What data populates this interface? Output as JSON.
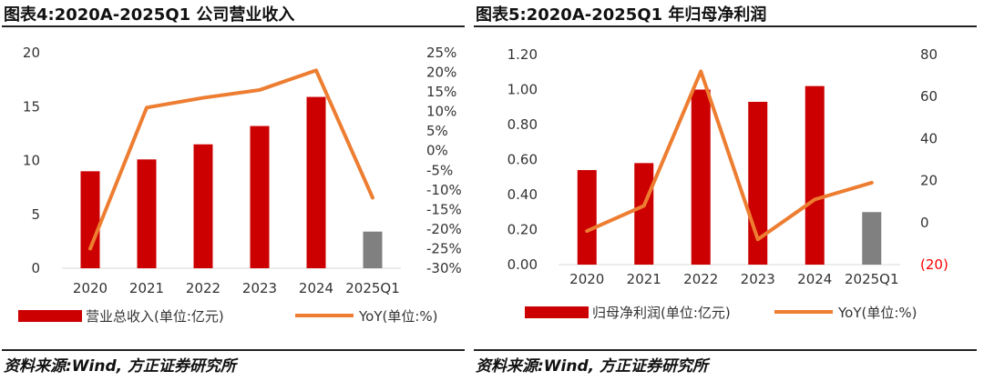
{
  "charts": [
    {
      "id": "left",
      "title": "图表4:2020A-2025Q1 公司营业收入",
      "source": "资料来源:Wind, 方正证券研究所",
      "chart_data": {
        "type": "bar",
        "categories": [
          "2020",
          "2021",
          "2022",
          "2023",
          "2024",
          "2025Q1"
        ],
        "series": [
          {
            "name": "营业总收入(单位:亿元)",
            "type": "bar",
            "axis": "left",
            "values": [
              9.0,
              10.1,
              11.5,
              13.2,
              15.9,
              3.4
            ],
            "colors": [
              "#cc0000",
              "#cc0000",
              "#cc0000",
              "#cc0000",
              "#cc0000",
              "#808080"
            ]
          },
          {
            "name": "YoY(单位:%)",
            "type": "line",
            "axis": "right",
            "color": "#ed7d31",
            "values": [
              -25,
              11,
              13.5,
              15.5,
              20.5,
              -12
            ]
          }
        ],
        "ylim_left": [
          0,
          20
        ],
        "yticks_left": [
          "0",
          "5",
          "10",
          "15",
          "20"
        ],
        "ylim_right": [
          -30,
          25
        ],
        "yticks_right": [
          "-30%",
          "-25%",
          "-20%",
          "-15%",
          "-10%",
          "-5%",
          "0%",
          "5%",
          "10%",
          "15%",
          "20%",
          "25%"
        ],
        "legend_position": "bottom",
        "grid": false
      }
    },
    {
      "id": "right",
      "title": "图表5:2020A-2025Q1 年归母净利润",
      "source": "资料来源:Wind, 方正证券研究所",
      "chart_data": {
        "type": "bar",
        "categories": [
          "2020",
          "2021",
          "2022",
          "2023",
          "2024",
          "2025Q1"
        ],
        "series": [
          {
            "name": "归母净利润(单位:亿元)",
            "type": "bar",
            "axis": "left",
            "values": [
              0.54,
              0.58,
              1.0,
              0.93,
              1.02,
              0.3
            ],
            "colors": [
              "#cc0000",
              "#cc0000",
              "#cc0000",
              "#cc0000",
              "#cc0000",
              "#808080"
            ]
          },
          {
            "name": "YoY(单位:%)",
            "type": "line",
            "axis": "right",
            "color": "#ed7d31",
            "values": [
              -4,
              8,
              72,
              -8,
              11,
              19
            ]
          }
        ],
        "ylim_left": [
          0,
          1.2
        ],
        "yticks_left": [
          "0.00",
          "0.20",
          "0.40",
          "0.60",
          "0.80",
          "1.00",
          "1.20"
        ],
        "ylim_right": [
          -20,
          80
        ],
        "yticks_right": [
          "(20)",
          "0",
          "20",
          "40",
          "60",
          "80"
        ],
        "right_tick_colors": [
          "#ff0000",
          "#333333",
          "#333333",
          "#333333",
          "#333333",
          "#333333"
        ],
        "legend_position": "bottom",
        "grid": false
      }
    }
  ]
}
